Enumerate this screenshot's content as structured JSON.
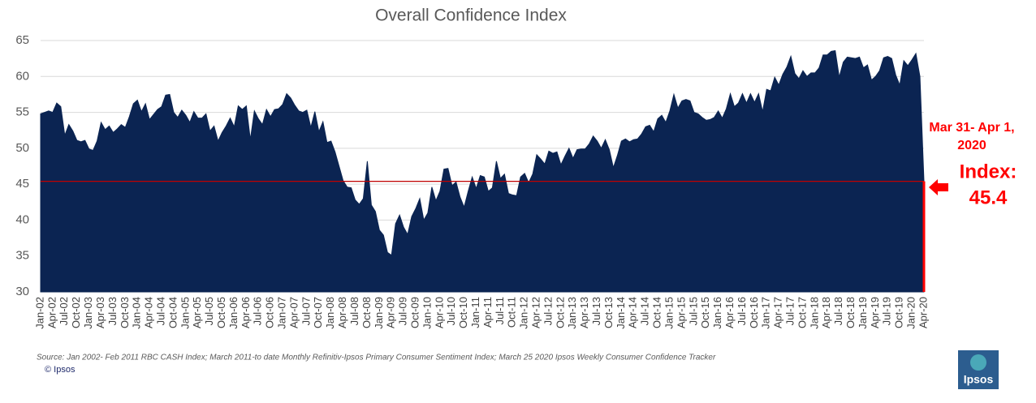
{
  "chart_data": {
    "type": "area",
    "title": "Overall Confidence Index",
    "color": "#0b2452",
    "grid": true,
    "ylim": [
      30,
      65
    ],
    "yticks": [
      30,
      35,
      40,
      45,
      50,
      55,
      60,
      65
    ],
    "categories": [
      "Jan-02",
      null,
      null,
      "Apr-02",
      null,
      null,
      "Jul-02",
      null,
      null,
      "Oct-02",
      null,
      null,
      "Jan-03",
      null,
      null,
      "Apr-03",
      null,
      null,
      "Jul-03",
      null,
      null,
      "Oct-03",
      null,
      null,
      "Jan-04",
      null,
      null,
      "Apr-04",
      null,
      null,
      "Jul-04",
      null,
      null,
      "Oct-04",
      null,
      null,
      "Jan-05",
      null,
      null,
      "Apr-05",
      null,
      null,
      "Jul-05",
      null,
      null,
      "Oct-05",
      null,
      null,
      "Jan-06",
      null,
      null,
      "Apr-06",
      null,
      null,
      "Jul-06",
      null,
      null,
      "Oct-06",
      null,
      null,
      "Jan-07",
      null,
      null,
      "Apr-07",
      null,
      null,
      "Jul-07",
      null,
      null,
      "Oct-07",
      null,
      null,
      "Jan-08",
      null,
      null,
      "Apr-08",
      null,
      null,
      "Jul-08",
      null,
      null,
      "Oct-08",
      null,
      null,
      "Jan-09",
      null,
      null,
      "Apr-09",
      null,
      null,
      "Jul-09",
      null,
      null,
      "Oct-09",
      null,
      null,
      "Jan-10",
      null,
      null,
      "Apr-10",
      null,
      null,
      "Jul-10",
      null,
      null,
      "Oct-10",
      null,
      null,
      "Jan-11",
      null,
      null,
      "Apr-11",
      null,
      null,
      "Jul-11",
      null,
      null,
      "Oct-11",
      null,
      null,
      "Jan-12",
      null,
      null,
      "Apr-12",
      null,
      null,
      "Jul-12",
      null,
      null,
      "Oct-12",
      null,
      null,
      "Jan-13",
      null,
      null,
      "Apr-13",
      null,
      null,
      "Jul-13",
      null,
      null,
      "Oct-13",
      null,
      null,
      "Jan-14",
      null,
      null,
      "Apr-14",
      null,
      null,
      "Jul-14",
      null,
      null,
      "Oct-14",
      null,
      null,
      "Jan-15",
      null,
      null,
      "Apr-15",
      null,
      null,
      "Jul-15",
      null,
      null,
      "Oct-15",
      null,
      null,
      "Jan-16",
      null,
      null,
      "Apr-16",
      null,
      null,
      "Jul-16",
      null,
      null,
      "Oct-16",
      null,
      null,
      "Jan-17",
      null,
      null,
      "Apr-17",
      null,
      null,
      "Jul-17",
      null,
      null,
      "Oct-17",
      null,
      null,
      "Jan-18",
      null,
      null,
      "Apr-18",
      null,
      null,
      "Jul-18",
      null,
      null,
      "Oct-18",
      null,
      null,
      "Jan-19",
      null,
      null,
      "Apr-19",
      null,
      null,
      "Jul-19",
      null,
      null,
      "Oct-19",
      null,
      null,
      "Jan-20",
      null,
      null,
      "Apr-20"
    ],
    "values": [
      54.8,
      55.0,
      55.2,
      55.0,
      56.3,
      55.8,
      51.8,
      53.3,
      52.4,
      51.1,
      50.9,
      51.1,
      49.9,
      49.7,
      51.0,
      53.6,
      52.6,
      53.1,
      52.2,
      52.7,
      53.3,
      52.9,
      54.4,
      56.2,
      56.7,
      55.1,
      56.2,
      54.0,
      54.7,
      55.4,
      55.8,
      57.4,
      57.5,
      55.0,
      54.3,
      55.3,
      54.6,
      53.6,
      55.1,
      54.2,
      54.2,
      54.8,
      52.4,
      53.1,
      51.0,
      52.2,
      53.1,
      54.2,
      53.0,
      55.9,
      55.4,
      55.9,
      51.2,
      55.2,
      54.1,
      53.3,
      55.4,
      54.4,
      55.4,
      55.5,
      56.1,
      57.6,
      57.0,
      56.0,
      55.2,
      55.0,
      55.3,
      52.9,
      55.1,
      52.3,
      53.7,
      50.8,
      51.0,
      49.5,
      47.5,
      45.5,
      44.6,
      44.5,
      42.8,
      42.2,
      43.0,
      48.2,
      42.1,
      41.2,
      38.6,
      37.9,
      35.5,
      35.1,
      39.5,
      40.7,
      39.0,
      38.0,
      40.5,
      41.6,
      43.0,
      40.0,
      41.0,
      44.6,
      42.7,
      44.0,
      47.1,
      47.2,
      44.8,
      45.3,
      43.2,
      41.8,
      44.0,
      46.0,
      44.4,
      46.2,
      46.0,
      44.0,
      44.5,
      48.2,
      45.8,
      46.4,
      43.7,
      43.5,
      43.4,
      46.0,
      46.5,
      45.2,
      46.4,
      49.1,
      48.5,
      47.8,
      49.6,
      49.3,
      49.5,
      47.7,
      48.9,
      50.0,
      48.6,
      49.8,
      49.9,
      49.9,
      50.6,
      51.7,
      51.0,
      50.0,
      51.2,
      49.8,
      47.3,
      49.0,
      51.0,
      51.3,
      50.9,
      51.2,
      51.3,
      52.0,
      53.0,
      53.2,
      52.3,
      54.1,
      54.6,
      53.6,
      55.2,
      57.5,
      55.6,
      56.6,
      56.8,
      56.6,
      55.0,
      54.8,
      54.3,
      53.9,
      54.0,
      54.3,
      55.2,
      54.2,
      55.5,
      57.6,
      55.8,
      56.3,
      57.6,
      56.3,
      57.6,
      56.4,
      57.6,
      55.1,
      58.2,
      58.0,
      59.9,
      58.8,
      60.3,
      61.3,
      62.8,
      60.4,
      59.7,
      60.8,
      60.0,
      60.5,
      60.5,
      61.2,
      63.0,
      63.0,
      63.5,
      63.6,
      59.9,
      62.0,
      62.7,
      62.6,
      62.5,
      62.7,
      61.2,
      61.6,
      59.5,
      60.0,
      60.8,
      62.6,
      62.8,
      62.5,
      60.2,
      58.8,
      62.2,
      61.5,
      62.3,
      63.2,
      60.0,
      45.4
    ],
    "annotation": {
      "date": [
        "Mar 31- Apr 1,",
        "2020"
      ],
      "label": "Index:",
      "value": 45.4
    },
    "source": "Source: Jan 2002- Feb 2011 RBC CASH Index; March 2011-to date Monthly Refinitiv-Ipsos Primary Consumer Sentiment Index; March 25 2020 Ipsos Weekly Consumer Confidence Tracker",
    "copyright": "© Ipsos",
    "logo": "Ipsos"
  }
}
